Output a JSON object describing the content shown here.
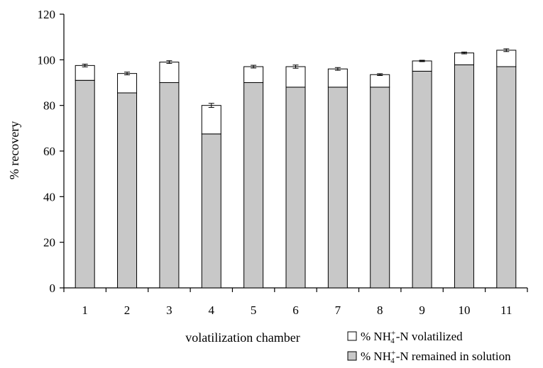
{
  "chart_data": {
    "type": "bar",
    "stacked": true,
    "title": "",
    "xlabel": "volatilization chamber",
    "ylabel": "% recovery",
    "ylim": [
      0,
      120
    ],
    "yticks": [
      0,
      20,
      40,
      60,
      80,
      100,
      120
    ],
    "grid": false,
    "legend_position": "bottom-right",
    "categories": [
      "1",
      "2",
      "3",
      "4",
      "5",
      "6",
      "7",
      "8",
      "9",
      "10",
      "11"
    ],
    "series": [
      {
        "name": "remained in solution",
        "color": "#c8c8c8",
        "values": [
          91,
          85.5,
          90,
          67.5,
          90,
          88,
          88,
          88,
          95,
          97.8,
          97
        ]
      },
      {
        "name": "volatilized",
        "color": "#ffffff",
        "values": [
          6.5,
          8.5,
          9,
          12.5,
          7,
          9,
          8,
          5.5,
          4.5,
          5.2,
          7.2
        ]
      }
    ],
    "totals": [
      97.5,
      94,
      99,
      80,
      97,
      97,
      96,
      93.5,
      99.5,
      103,
      104.2
    ],
    "error_bars": [
      0.6,
      0.6,
      0.6,
      0.9,
      0.6,
      0.7,
      0.6,
      0.4,
      0.3,
      0.4,
      0.6
    ],
    "legend": {
      "prefix": "% NH",
      "sub": "4",
      "sup": "+",
      "entries": [
        "-N volatilized",
        "-N remained in solution"
      ]
    }
  }
}
